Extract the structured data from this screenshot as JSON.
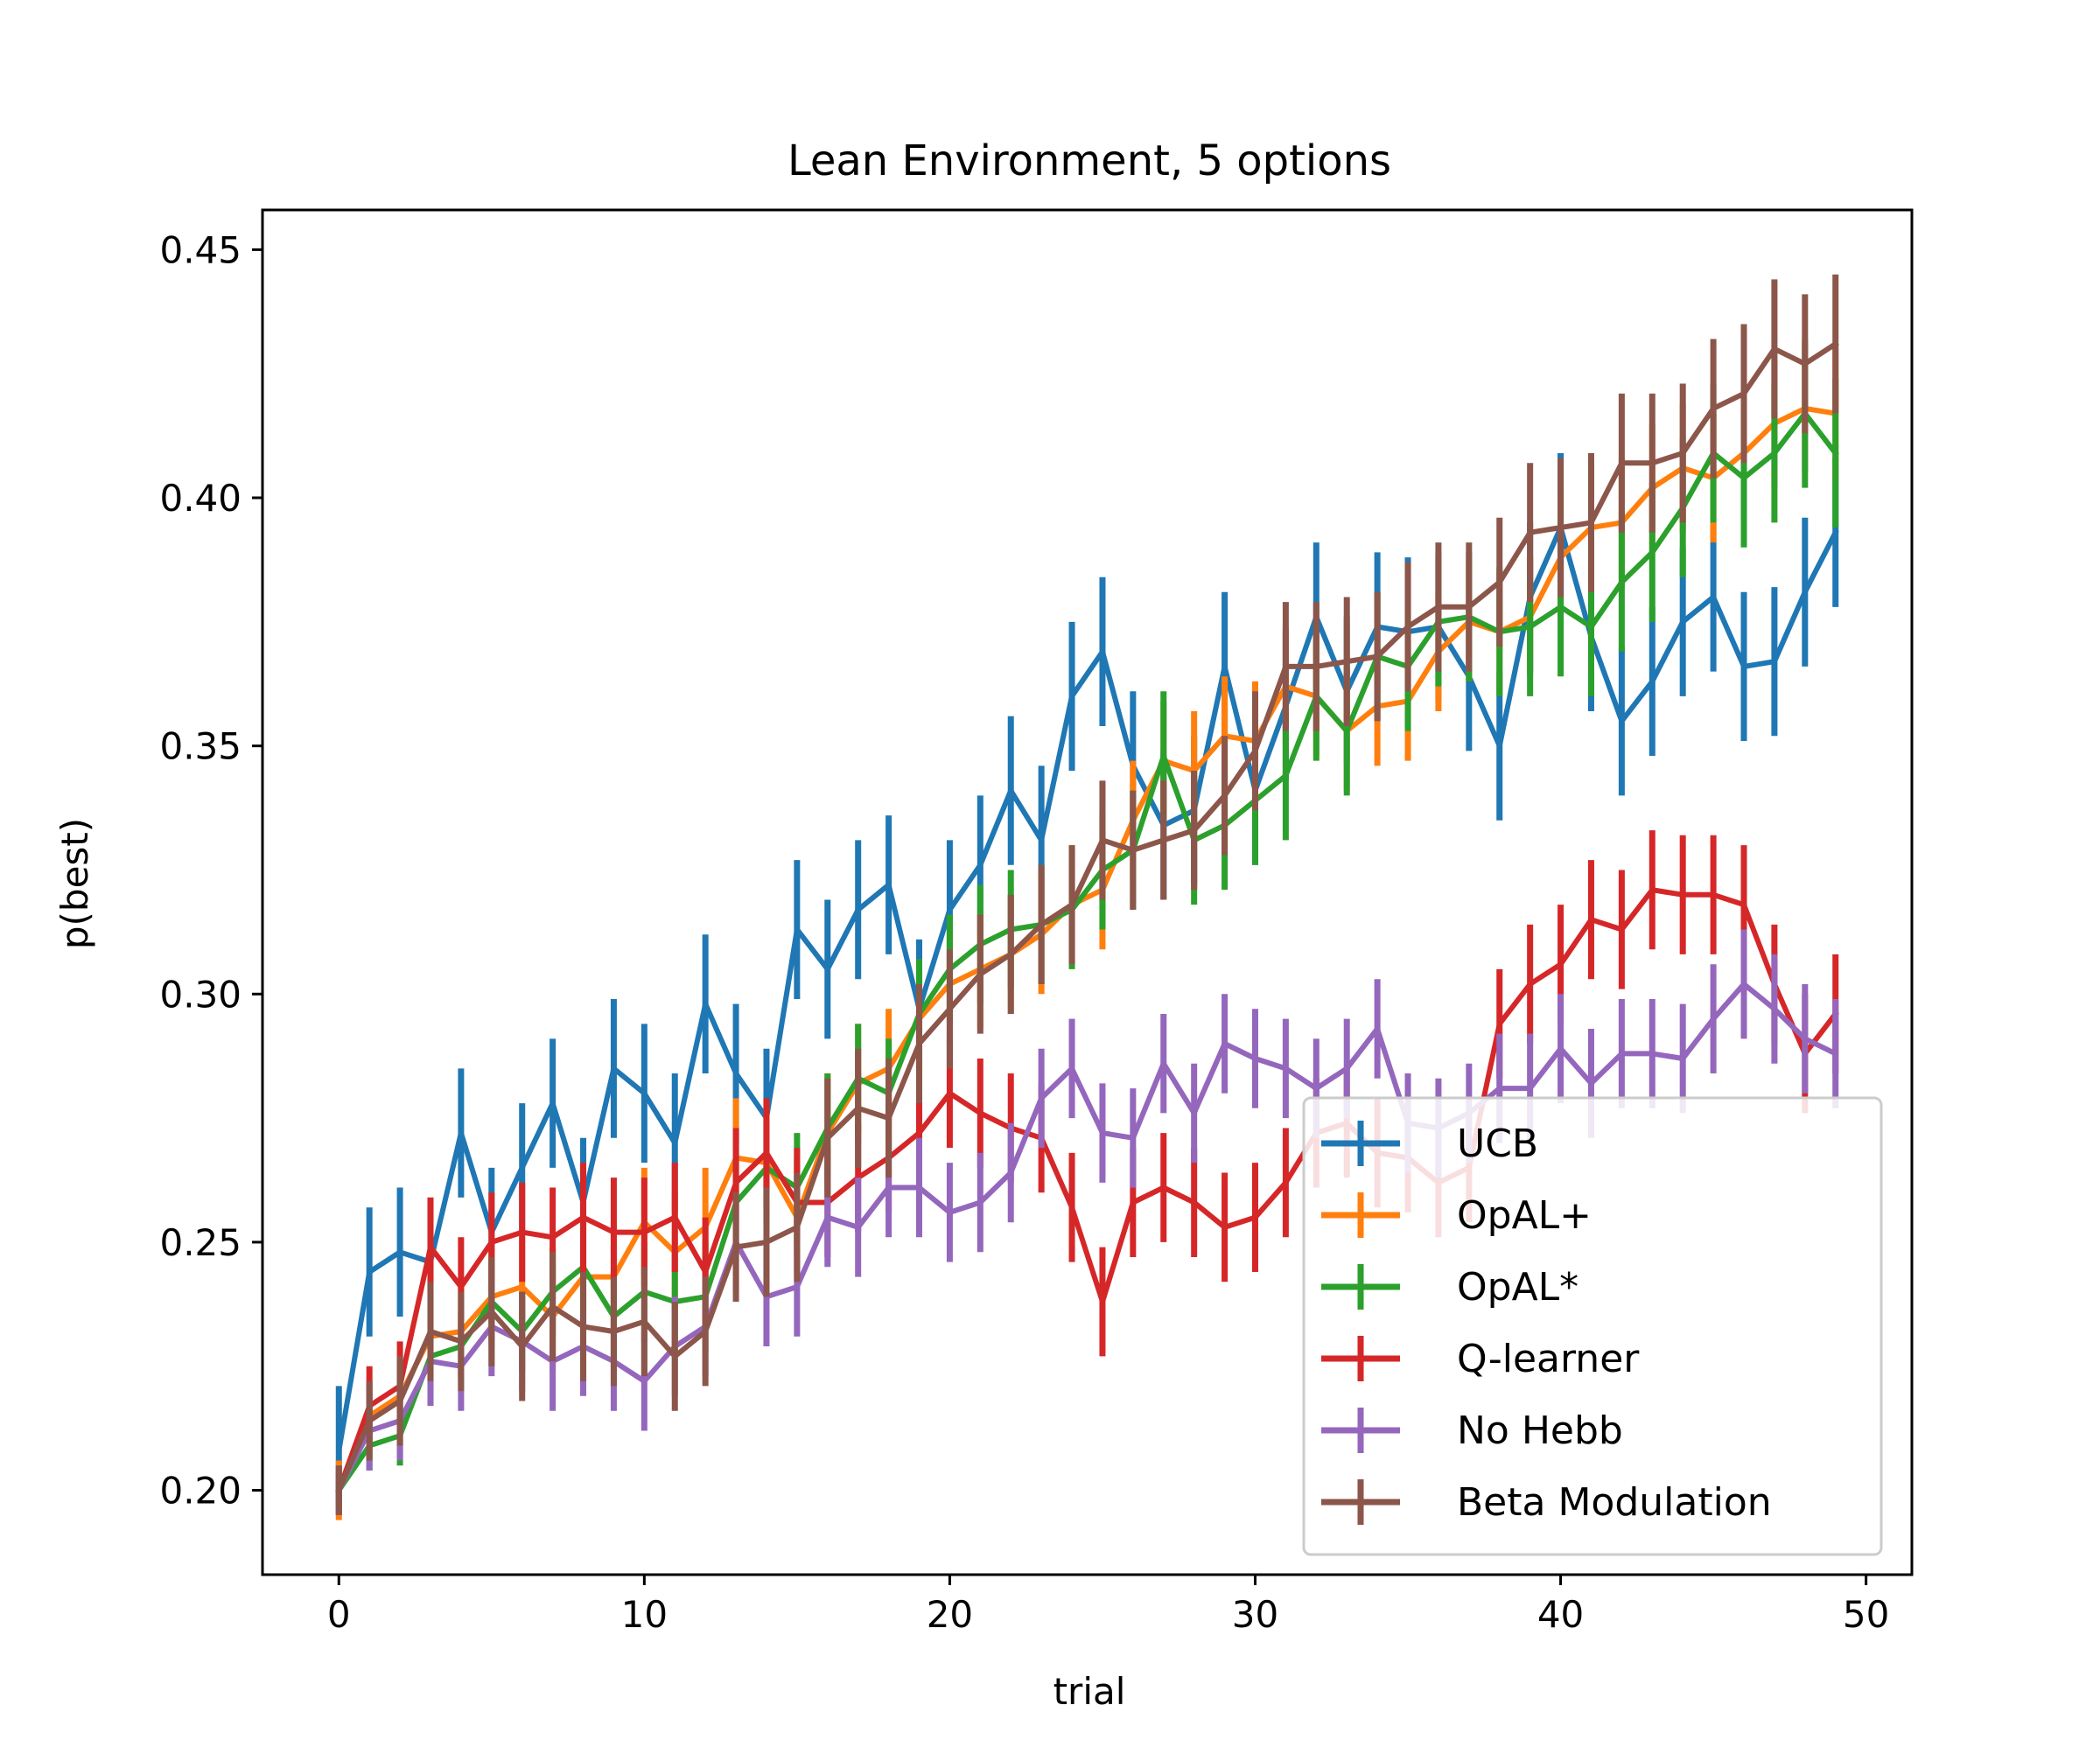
{
  "chart_data": {
    "type": "line",
    "title": "Lean Environment, 5 options",
    "xlabel": "trial",
    "ylabel": "p(best)",
    "xlim": [
      -2.5,
      51.5
    ],
    "ylim": [
      0.183,
      0.458
    ],
    "xticks": [
      0,
      10,
      20,
      30,
      40,
      50
    ],
    "xtick_labels": [
      "0",
      "10",
      "20",
      "30",
      "40",
      "50"
    ],
    "yticks": [
      0.2,
      0.25,
      0.3,
      0.35,
      0.4,
      0.45
    ],
    "ytick_labels": [
      "0.20",
      "0.25",
      "0.30",
      "0.35",
      "0.40",
      "0.45"
    ],
    "grid": false,
    "legend_position": "lower-right",
    "x": [
      0,
      1,
      2,
      3,
      4,
      5,
      6,
      7,
      8,
      9,
      10,
      11,
      12,
      13,
      14,
      15,
      16,
      17,
      18,
      19,
      20,
      21,
      22,
      23,
      24,
      25,
      26,
      27,
      28,
      29,
      30,
      31,
      32,
      33,
      34,
      35,
      36,
      37,
      38,
      39,
      40,
      41,
      42,
      43,
      44,
      45,
      46,
      47,
      48,
      49
    ],
    "series": [
      {
        "name": "UCB",
        "color": "#1f77b4",
        "values": [
          0.208,
          0.244,
          0.248,
          0.246,
          0.272,
          0.252,
          0.265,
          0.278,
          0.258,
          0.285,
          0.28,
          0.27,
          0.298,
          0.284,
          0.275,
          0.313,
          0.305,
          0.317,
          0.322,
          0.297,
          0.317,
          0.326,
          0.341,
          0.331,
          0.36,
          0.369,
          0.346,
          0.334,
          0.337,
          0.366,
          0.341,
          0.358,
          0.376,
          0.361,
          0.374,
          0.373,
          0.374,
          0.364,
          0.35,
          0.38,
          0.394,
          0.372,
          0.355,
          0.363,
          0.375,
          0.38,
          0.366,
          0.367,
          0.381,
          0.393
        ],
        "err": [
          0.013,
          0.013,
          0.013,
          0.013,
          0.013,
          0.013,
          0.013,
          0.013,
          0.013,
          0.014,
          0.014,
          0.014,
          0.014,
          0.014,
          0.014,
          0.014,
          0.014,
          0.014,
          0.014,
          0.014,
          0.014,
          0.014,
          0.015,
          0.015,
          0.015,
          0.015,
          0.015,
          0.015,
          0.015,
          0.015,
          0.015,
          0.015,
          0.015,
          0.015,
          0.015,
          0.015,
          0.015,
          0.015,
          0.015,
          0.015,
          0.015,
          0.015,
          0.015,
          0.015,
          0.015,
          0.015,
          0.015,
          0.015,
          0.015,
          0.015
        ]
      },
      {
        "name": "OpAL+",
        "color": "#ff7f0e",
        "values": [
          0.2,
          0.215,
          0.219,
          0.231,
          0.232,
          0.239,
          0.241,
          0.235,
          0.243,
          0.243,
          0.254,
          0.248,
          0.253,
          0.267,
          0.266,
          0.255,
          0.272,
          0.282,
          0.285,
          0.295,
          0.302,
          0.305,
          0.308,
          0.312,
          0.318,
          0.321,
          0.335,
          0.347,
          0.345,
          0.352,
          0.351,
          0.362,
          0.36,
          0.353,
          0.358,
          0.359,
          0.369,
          0.375,
          0.373,
          0.376,
          0.388,
          0.394,
          0.395,
          0.402,
          0.406,
          0.404,
          0.409,
          0.415,
          0.418,
          0.417
        ],
        "err": [
          0.006,
          0.007,
          0.008,
          0.009,
          0.009,
          0.01,
          0.01,
          0.011,
          0.011,
          0.011,
          0.011,
          0.012,
          0.012,
          0.012,
          0.012,
          0.012,
          0.012,
          0.012,
          0.012,
          0.012,
          0.012,
          0.012,
          0.012,
          0.012,
          0.012,
          0.012,
          0.012,
          0.012,
          0.012,
          0.012,
          0.012,
          0.012,
          0.012,
          0.012,
          0.012,
          0.012,
          0.012,
          0.012,
          0.012,
          0.012,
          0.013,
          0.013,
          0.013,
          0.013,
          0.013,
          0.013,
          0.013,
          0.013,
          0.013,
          0.013
        ]
      },
      {
        "name": "OpAL*",
        "color": "#2ca02c",
        "values": [
          0.2,
          0.209,
          0.211,
          0.227,
          0.229,
          0.238,
          0.232,
          0.24,
          0.245,
          0.235,
          0.24,
          0.238,
          0.239,
          0.258,
          0.265,
          0.261,
          0.273,
          0.283,
          0.28,
          0.296,
          0.305,
          0.31,
          0.313,
          0.314,
          0.317,
          0.325,
          0.329,
          0.348,
          0.331,
          0.334,
          0.339,
          0.344,
          0.36,
          0.353,
          0.368,
          0.366,
          0.375,
          0.376,
          0.373,
          0.374,
          0.378,
          0.374,
          0.383,
          0.389,
          0.398,
          0.409,
          0.404,
          0.409,
          0.417,
          0.409
        ],
        "err": [
          0.004,
          0.005,
          0.006,
          0.006,
          0.007,
          0.008,
          0.008,
          0.009,
          0.009,
          0.01,
          0.01,
          0.01,
          0.011,
          0.011,
          0.011,
          0.011,
          0.011,
          0.011,
          0.011,
          0.011,
          0.011,
          0.012,
          0.012,
          0.012,
          0.012,
          0.012,
          0.012,
          0.013,
          0.013,
          0.013,
          0.013,
          0.013,
          0.013,
          0.013,
          0.013,
          0.013,
          0.013,
          0.013,
          0.013,
          0.014,
          0.014,
          0.014,
          0.014,
          0.014,
          0.014,
          0.014,
          0.014,
          0.014,
          0.015,
          0.015
        ]
      },
      {
        "name": "Q-learner",
        "color": "#d62728",
        "values": [
          0.2,
          0.217,
          0.221,
          0.249,
          0.241,
          0.25,
          0.252,
          0.251,
          0.255,
          0.252,
          0.252,
          0.255,
          0.244,
          0.262,
          0.268,
          0.258,
          0.258,
          0.263,
          0.267,
          0.272,
          0.28,
          0.276,
          0.273,
          0.271,
          0.257,
          0.238,
          0.258,
          0.261,
          0.258,
          0.253,
          0.255,
          0.262,
          0.272,
          0.274,
          0.268,
          0.267,
          0.262,
          0.265,
          0.294,
          0.302,
          0.306,
          0.315,
          0.313,
          0.321,
          0.32,
          0.32,
          0.318,
          0.302,
          0.288,
          0.296
        ],
        "err": [
          0.003,
          0.008,
          0.009,
          0.01,
          0.01,
          0.01,
          0.01,
          0.01,
          0.011,
          0.011,
          0.011,
          0.011,
          0.011,
          0.011,
          0.011,
          0.011,
          0.011,
          0.011,
          0.011,
          0.011,
          0.011,
          0.011,
          0.011,
          0.011,
          0.011,
          0.011,
          0.011,
          0.011,
          0.011,
          0.011,
          0.011,
          0.011,
          0.011,
          0.011,
          0.011,
          0.011,
          0.011,
          0.011,
          0.011,
          0.012,
          0.012,
          0.012,
          0.012,
          0.012,
          0.012,
          0.012,
          0.012,
          0.012,
          0.012,
          0.012
        ]
      },
      {
        "name": "No Hebb",
        "color": "#9467bd",
        "values": [
          0.2,
          0.212,
          0.214,
          0.226,
          0.225,
          0.233,
          0.23,
          0.226,
          0.229,
          0.226,
          0.222,
          0.229,
          0.233,
          0.25,
          0.239,
          0.241,
          0.255,
          0.253,
          0.261,
          0.261,
          0.256,
          0.258,
          0.264,
          0.279,
          0.285,
          0.272,
          0.271,
          0.286,
          0.276,
          0.29,
          0.287,
          0.285,
          0.281,
          0.285,
          0.293,
          0.274,
          0.273,
          0.276,
          0.281,
          0.281,
          0.289,
          0.282,
          0.288,
          0.288,
          0.287,
          0.295,
          0.302,
          0.297,
          0.291,
          0.288
        ],
        "err": [
          0.005,
          0.008,
          0.008,
          0.009,
          0.009,
          0.01,
          0.01,
          0.01,
          0.01,
          0.01,
          0.01,
          0.01,
          0.01,
          0.01,
          0.01,
          0.01,
          0.01,
          0.01,
          0.01,
          0.01,
          0.01,
          0.01,
          0.01,
          0.01,
          0.01,
          0.01,
          0.01,
          0.01,
          0.01,
          0.01,
          0.01,
          0.01,
          0.01,
          0.01,
          0.01,
          0.01,
          0.01,
          0.01,
          0.011,
          0.011,
          0.011,
          0.011,
          0.011,
          0.011,
          0.011,
          0.011,
          0.011,
          0.011,
          0.011,
          0.011
        ]
      },
      {
        "name": "Beta Modulation",
        "color": "#8c564b",
        "values": [
          0.2,
          0.214,
          0.218,
          0.232,
          0.23,
          0.236,
          0.229,
          0.237,
          0.233,
          0.232,
          0.234,
          0.227,
          0.232,
          0.249,
          0.25,
          0.253,
          0.271,
          0.277,
          0.275,
          0.29,
          0.297,
          0.304,
          0.308,
          0.314,
          0.318,
          0.331,
          0.329,
          0.331,
          0.333,
          0.34,
          0.349,
          0.366,
          0.366,
          0.367,
          0.368,
          0.374,
          0.378,
          0.378,
          0.383,
          0.393,
          0.394,
          0.395,
          0.407,
          0.407,
          0.409,
          0.418,
          0.421,
          0.43,
          0.427,
          0.431
        ],
        "err": [
          0.005,
          0.008,
          0.009,
          0.01,
          0.01,
          0.011,
          0.011,
          0.011,
          0.011,
          0.011,
          0.011,
          0.011,
          0.011,
          0.011,
          0.011,
          0.011,
          0.012,
          0.012,
          0.012,
          0.012,
          0.012,
          0.012,
          0.012,
          0.012,
          0.012,
          0.012,
          0.012,
          0.012,
          0.012,
          0.012,
          0.012,
          0.013,
          0.013,
          0.013,
          0.013,
          0.013,
          0.013,
          0.013,
          0.013,
          0.014,
          0.014,
          0.014,
          0.014,
          0.014,
          0.014,
          0.014,
          0.014,
          0.014,
          0.014,
          0.014
        ]
      }
    ]
  }
}
